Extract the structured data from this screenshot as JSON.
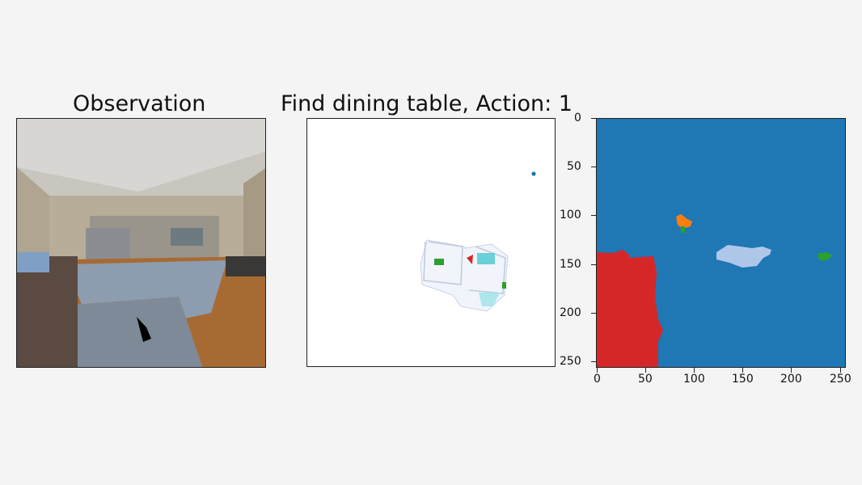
{
  "titles": {
    "observation": "Observation",
    "map": "Find dining table, Action: 1"
  },
  "colors": {
    "background": "#f4f4f4",
    "seg_background": "#1f77b4",
    "seg_red": "#d62728",
    "seg_orange": "#ff7f0e",
    "seg_green": "#2ca02c",
    "seg_lightblue": "#aec7e8",
    "goal_dot": "#1f77b4",
    "agent_marker": "#d62728"
  },
  "seg_axes": {
    "y_ticks": [
      "0",
      "50",
      "100",
      "150",
      "200",
      "250"
    ],
    "x_ticks": [
      "0",
      "50",
      "100",
      "150",
      "200",
      "250"
    ]
  }
}
